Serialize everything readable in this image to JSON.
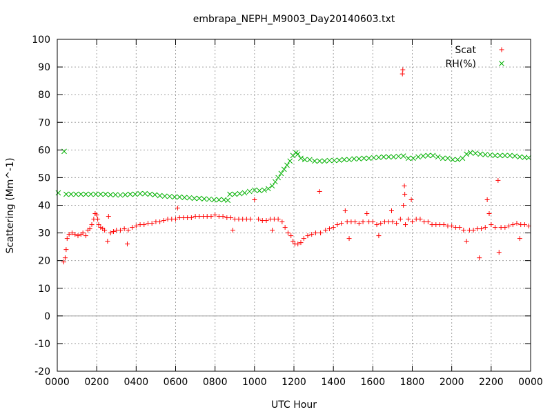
{
  "chart_data": {
    "type": "scatter",
    "title": "embrapa_NEPH_M9003_Day20140603.txt",
    "xlabel": "UTC Hour",
    "ylabel": "Scattering (Mm^-1)",
    "xlim": [
      0,
      24
    ],
    "ylim": [
      -20,
      100
    ],
    "grid": true,
    "legend": "top-right",
    "x_ticks": [
      {
        "value": 0,
        "label": "0000"
      },
      {
        "value": 2,
        "label": "0200"
      },
      {
        "value": 4,
        "label": "0400"
      },
      {
        "value": 6,
        "label": "0600"
      },
      {
        "value": 8,
        "label": "0800"
      },
      {
        "value": 10,
        "label": "1000"
      },
      {
        "value": 12,
        "label": "1200"
      },
      {
        "value": 14,
        "label": "1400"
      },
      {
        "value": 16,
        "label": "1600"
      },
      {
        "value": 18,
        "label": "1800"
      },
      {
        "value": 20,
        "label": "2000"
      },
      {
        "value": 22,
        "label": "2200"
      },
      {
        "value": 24,
        "label": "0000"
      }
    ],
    "y_ticks": [
      -20,
      -10,
      0,
      10,
      20,
      30,
      40,
      50,
      60,
      70,
      80,
      90,
      100
    ],
    "series": [
      {
        "name": "Scat",
        "color": "#ff0000",
        "marker": "plus",
        "points": [
          [
            0.33,
            19.5
          ],
          [
            0.4,
            21
          ],
          [
            0.45,
            24
          ],
          [
            0.5,
            28
          ],
          [
            0.6,
            29.5
          ],
          [
            0.75,
            30
          ],
          [
            0.9,
            29.5
          ],
          [
            1.05,
            29
          ],
          [
            1.2,
            29.5
          ],
          [
            1.3,
            30
          ],
          [
            1.45,
            29
          ],
          [
            1.55,
            31
          ],
          [
            1.65,
            31.5
          ],
          [
            1.75,
            33
          ],
          [
            1.85,
            35
          ],
          [
            1.92,
            37
          ],
          [
            2.0,
            36.5
          ],
          [
            2.05,
            35
          ],
          [
            2.1,
            33
          ],
          [
            2.2,
            32
          ],
          [
            2.3,
            31.5
          ],
          [
            2.4,
            31
          ],
          [
            2.55,
            27
          ],
          [
            2.6,
            36
          ],
          [
            2.7,
            30
          ],
          [
            2.85,
            30.5
          ],
          [
            3.0,
            31
          ],
          [
            3.2,
            31
          ],
          [
            3.4,
            31.5
          ],
          [
            3.55,
            26
          ],
          [
            3.6,
            31
          ],
          [
            3.8,
            32
          ],
          [
            4.0,
            32.5
          ],
          [
            4.2,
            33
          ],
          [
            4.4,
            33
          ],
          [
            4.6,
            33.5
          ],
          [
            4.8,
            33.5
          ],
          [
            5.0,
            34
          ],
          [
            5.2,
            34
          ],
          [
            5.4,
            34.5
          ],
          [
            5.6,
            35
          ],
          [
            5.8,
            35
          ],
          [
            6.0,
            35
          ],
          [
            6.1,
            39
          ],
          [
            6.2,
            35.5
          ],
          [
            6.4,
            35.5
          ],
          [
            6.6,
            35.5
          ],
          [
            6.8,
            35.5
          ],
          [
            7.0,
            36
          ],
          [
            7.2,
            36
          ],
          [
            7.4,
            36
          ],
          [
            7.6,
            36
          ],
          [
            7.8,
            36
          ],
          [
            8.0,
            36.5
          ],
          [
            8.2,
            36
          ],
          [
            8.4,
            36
          ],
          [
            8.6,
            35.5
          ],
          [
            8.8,
            35.5
          ],
          [
            8.9,
            31
          ],
          [
            9.0,
            35
          ],
          [
            9.2,
            35
          ],
          [
            9.4,
            35
          ],
          [
            9.6,
            35
          ],
          [
            9.8,
            35
          ],
          [
            10.0,
            42
          ],
          [
            10.2,
            35
          ],
          [
            10.4,
            34.5
          ],
          [
            10.6,
            34.5
          ],
          [
            10.8,
            35
          ],
          [
            10.9,
            31
          ],
          [
            11.0,
            35
          ],
          [
            11.2,
            35
          ],
          [
            11.4,
            34
          ],
          [
            11.55,
            32
          ],
          [
            11.7,
            30
          ],
          [
            11.85,
            29
          ],
          [
            11.95,
            27
          ],
          [
            12.05,
            26
          ],
          [
            12.2,
            26
          ],
          [
            12.35,
            26.5
          ],
          [
            12.5,
            28
          ],
          [
            12.7,
            29
          ],
          [
            12.9,
            29.5
          ],
          [
            13.1,
            30
          ],
          [
            13.3,
            45
          ],
          [
            13.35,
            30
          ],
          [
            13.6,
            31
          ],
          [
            13.8,
            31.5
          ],
          [
            14.0,
            32
          ],
          [
            14.2,
            33
          ],
          [
            14.4,
            33.5
          ],
          [
            14.6,
            38
          ],
          [
            14.7,
            34
          ],
          [
            14.8,
            28
          ],
          [
            14.9,
            34
          ],
          [
            15.1,
            34
          ],
          [
            15.3,
            33.5
          ],
          [
            15.5,
            34
          ],
          [
            15.7,
            37
          ],
          [
            15.8,
            34
          ],
          [
            16.0,
            34
          ],
          [
            16.2,
            33
          ],
          [
            16.3,
            29
          ],
          [
            16.4,
            33.5
          ],
          [
            16.6,
            34
          ],
          [
            16.8,
            34
          ],
          [
            16.95,
            38
          ],
          [
            17.0,
            34
          ],
          [
            17.2,
            33.5
          ],
          [
            17.4,
            35
          ],
          [
            17.5,
            87.5
          ],
          [
            17.52,
            89
          ],
          [
            17.55,
            40
          ],
          [
            17.6,
            47
          ],
          [
            17.62,
            44
          ],
          [
            17.65,
            33
          ],
          [
            17.8,
            35
          ],
          [
            17.95,
            42
          ],
          [
            18.0,
            34
          ],
          [
            18.2,
            35
          ],
          [
            18.4,
            35
          ],
          [
            18.6,
            34
          ],
          [
            18.8,
            34
          ],
          [
            19.0,
            33
          ],
          [
            19.2,
            33
          ],
          [
            19.4,
            33
          ],
          [
            19.6,
            33
          ],
          [
            19.8,
            32.5
          ],
          [
            20.0,
            32.5
          ],
          [
            20.2,
            32
          ],
          [
            20.4,
            32
          ],
          [
            20.6,
            31
          ],
          [
            20.75,
            27
          ],
          [
            20.9,
            31
          ],
          [
            21.1,
            31
          ],
          [
            21.3,
            31.5
          ],
          [
            21.4,
            21
          ],
          [
            21.5,
            31.5
          ],
          [
            21.7,
            32
          ],
          [
            21.8,
            42
          ],
          [
            21.9,
            37
          ],
          [
            22.0,
            33
          ],
          [
            22.2,
            32
          ],
          [
            22.35,
            49
          ],
          [
            22.4,
            23
          ],
          [
            22.5,
            32
          ],
          [
            22.7,
            32
          ],
          [
            22.9,
            32.5
          ],
          [
            23.1,
            33
          ],
          [
            23.3,
            33.5
          ],
          [
            23.45,
            28
          ],
          [
            23.5,
            33
          ],
          [
            23.7,
            33
          ],
          [
            23.9,
            32.5
          ]
        ]
      },
      {
        "name": "RH(%)",
        "color": "#00b000",
        "marker": "cross",
        "points": [
          [
            0.05,
            44.5
          ],
          [
            0.35,
            59.5
          ],
          [
            0.45,
            44
          ],
          [
            0.7,
            44
          ],
          [
            0.95,
            44
          ],
          [
            1.2,
            44
          ],
          [
            1.45,
            44
          ],
          [
            1.7,
            44
          ],
          [
            1.95,
            44
          ],
          [
            2.2,
            44
          ],
          [
            2.45,
            44
          ],
          [
            2.7,
            43.8
          ],
          [
            2.95,
            43.8
          ],
          [
            3.2,
            43.7
          ],
          [
            3.45,
            43.8
          ],
          [
            3.7,
            44
          ],
          [
            3.95,
            44
          ],
          [
            4.2,
            44.2
          ],
          [
            4.45,
            44.2
          ],
          [
            4.7,
            44
          ],
          [
            4.95,
            43.8
          ],
          [
            5.2,
            43.5
          ],
          [
            5.45,
            43.3
          ],
          [
            5.7,
            43.2
          ],
          [
            5.95,
            43
          ],
          [
            6.2,
            43
          ],
          [
            6.45,
            42.8
          ],
          [
            6.7,
            42.7
          ],
          [
            6.95,
            42.5
          ],
          [
            7.2,
            42.5
          ],
          [
            7.45,
            42.3
          ],
          [
            7.7,
            42.2
          ],
          [
            7.95,
            42
          ],
          [
            8.2,
            42
          ],
          [
            8.45,
            42
          ],
          [
            8.65,
            41.8
          ],
          [
            8.75,
            44
          ],
          [
            9.0,
            44
          ],
          [
            9.25,
            44.2
          ],
          [
            9.5,
            44.5
          ],
          [
            9.75,
            45
          ],
          [
            10.0,
            45.5
          ],
          [
            10.25,
            45.3
          ],
          [
            10.5,
            45.5
          ],
          [
            10.7,
            46
          ],
          [
            10.9,
            47
          ],
          [
            11.05,
            48.5
          ],
          [
            11.2,
            50
          ],
          [
            11.35,
            51.5
          ],
          [
            11.5,
            53
          ],
          [
            11.65,
            54.5
          ],
          [
            11.8,
            56
          ],
          [
            11.95,
            58
          ],
          [
            12.1,
            59
          ],
          [
            12.2,
            58.5
          ],
          [
            12.35,
            57
          ],
          [
            12.55,
            56.5
          ],
          [
            12.8,
            56.5
          ],
          [
            13.05,
            56
          ],
          [
            13.3,
            56
          ],
          [
            13.55,
            56
          ],
          [
            13.8,
            56.2
          ],
          [
            14.05,
            56.2
          ],
          [
            14.3,
            56.3
          ],
          [
            14.55,
            56.5
          ],
          [
            14.8,
            56.5
          ],
          [
            15.05,
            56.8
          ],
          [
            15.3,
            56.8
          ],
          [
            15.55,
            57
          ],
          [
            15.8,
            57
          ],
          [
            16.05,
            57.2
          ],
          [
            16.3,
            57.3
          ],
          [
            16.55,
            57.5
          ],
          [
            16.8,
            57.5
          ],
          [
            17.05,
            57.5
          ],
          [
            17.3,
            57.7
          ],
          [
            17.55,
            57.8
          ],
          [
            17.8,
            57
          ],
          [
            18.05,
            57
          ],
          [
            18.3,
            57.5
          ],
          [
            18.55,
            57.8
          ],
          [
            18.8,
            58
          ],
          [
            19.05,
            58
          ],
          [
            19.3,
            57.5
          ],
          [
            19.55,
            57
          ],
          [
            19.8,
            57
          ],
          [
            20.05,
            56.5
          ],
          [
            20.3,
            56.5
          ],
          [
            20.55,
            57
          ],
          [
            20.75,
            58.5
          ],
          [
            20.95,
            59
          ],
          [
            21.2,
            58.8
          ],
          [
            21.45,
            58.5
          ],
          [
            21.7,
            58.3
          ],
          [
            21.95,
            58.2
          ],
          [
            22.2,
            58
          ],
          [
            22.45,
            58
          ],
          [
            22.7,
            58
          ],
          [
            22.95,
            58
          ],
          [
            23.2,
            57.8
          ],
          [
            23.45,
            57.5
          ],
          [
            23.7,
            57.3
          ],
          [
            23.9,
            57.2
          ]
        ]
      }
    ]
  }
}
